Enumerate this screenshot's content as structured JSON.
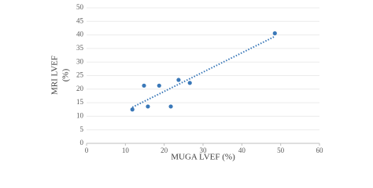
{
  "chart_data": {
    "type": "scatter",
    "xlabel": "MUGA LVEF  (%)",
    "ylabel": [
      "MRI LVEF",
      "(%)"
    ],
    "x": [
      11.8,
      14.8,
      15.8,
      18.7,
      21.7,
      23.7,
      26.6,
      48.5
    ],
    "series": [
      {
        "color": "#3a78b8",
        "values": [
          12.5,
          21.3,
          13.6,
          21.3,
          13.6,
          23.4,
          22.3,
          40.6
        ]
      }
    ],
    "xlim": [
      0,
      60
    ],
    "xticks": [
      0,
      10,
      20,
      30,
      40,
      50,
      60
    ],
    "ylim": [
      0,
      50
    ],
    "yticks": [
      0,
      5,
      10,
      15,
      20,
      25,
      30,
      35,
      40,
      45,
      50
    ],
    "grid": true,
    "trendline": true
  }
}
